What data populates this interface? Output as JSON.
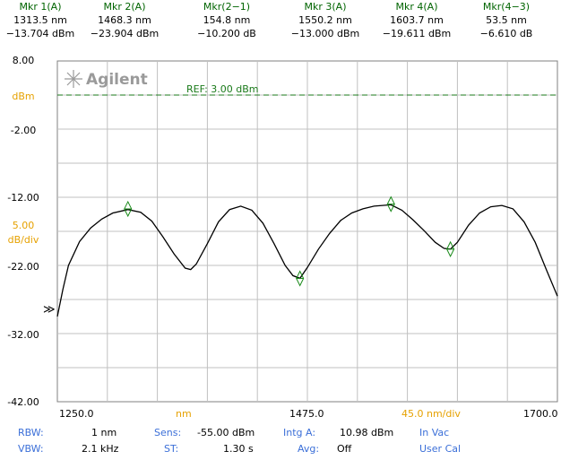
{
  "markers": [
    {
      "label": "Mkr 1(A)",
      "line1": "1313.5 nm",
      "line2": "−13.704 dBm"
    },
    {
      "label": "Mkr 2(A)",
      "line1": "1468.3 nm",
      "line2": "−23.904 dBm"
    },
    {
      "label": "Mkr(2−1)",
      "line1": "154.8 nm",
      "line2": "−10.200 dB"
    },
    {
      "label": "Mkr 3(A)",
      "line1": "1550.2 nm",
      "line2": "−13.000 dBm"
    },
    {
      "label": "Mkr 4(A)",
      "line1": "1603.7 nm",
      "line2": "−19.611 dBm"
    },
    {
      "label": "Mkr(4−3)",
      "line1": "53.5 nm",
      "line2": "−6.610 dB"
    }
  ],
  "logo": "Agilent",
  "ref_label": "REF: 3.00 dBm",
  "y_axis": {
    "top": "8.00",
    "unit": "dBm",
    "l1": "-2.00",
    "l2": "-12.00",
    "scale_value": "5.00",
    "scale_unit": "dB/div",
    "l3": "-22.00",
    "l4": "-32.00",
    "bottom": "-42.00",
    "ref_arrow": "≫"
  },
  "x_axis": {
    "start": "1250.0",
    "unit": "nm",
    "center": "1475.0",
    "span": "45.0 nm/div",
    "end": "1700.0"
  },
  "settings": {
    "rbw_label": "RBW:",
    "rbw": "1 nm",
    "vbw_label": "VBW:",
    "vbw": "2.1 kHz",
    "sens_label": "Sens:",
    "sens": "-55.00 dBm",
    "st_label": "ST:",
    "st": "1.30 s",
    "intg_label": "Intg A:",
    "intg": "10.98 dBm",
    "avg_label": "Avg:",
    "avg": "Off",
    "vac": "In Vac",
    "cal": "User Cal"
  },
  "colors": {
    "marker_header": "#006400",
    "ref_line": "#1a7a1a",
    "label_blue": "#3b6fd8",
    "label_orange": "#e6a100",
    "trace": "#000000",
    "grid": "#c0c0c0"
  },
  "chart_data": {
    "type": "line",
    "xlabel": "nm",
    "ylabel": "dBm",
    "xlim": [
      1250,
      1700
    ],
    "ylim": [
      -42,
      8
    ],
    "reference_level": 3.0,
    "x": [
      1250,
      1255,
      1260,
      1270,
      1280,
      1290,
      1300,
      1313.5,
      1325,
      1335,
      1345,
      1355,
      1365,
      1370,
      1375,
      1385,
      1395,
      1405,
      1415,
      1425,
      1435,
      1445,
      1455,
      1462,
      1468.3,
      1475,
      1485,
      1495,
      1505,
      1515,
      1525,
      1535,
      1550.2,
      1560,
      1570,
      1580,
      1590,
      1598,
      1603.7,
      1610,
      1620,
      1630,
      1640,
      1650,
      1660,
      1670,
      1680,
      1690,
      1700
    ],
    "y": [
      -29.5,
      -25.5,
      -22,
      -18.5,
      -16.5,
      -15.2,
      -14.3,
      -13.8,
      -14.2,
      -15.5,
      -17.8,
      -20.3,
      -22.4,
      -22.6,
      -21.8,
      -18.8,
      -15.6,
      -13.8,
      -13.3,
      -13.9,
      -15.8,
      -18.8,
      -22,
      -23.5,
      -23.9,
      -22.3,
      -19.6,
      -17.3,
      -15.4,
      -14.3,
      -13.7,
      -13.3,
      -13.1,
      -13.9,
      -15.3,
      -16.9,
      -18.6,
      -19.5,
      -19.6,
      -18.6,
      -16.1,
      -14.3,
      -13.4,
      -13.2,
      -13.7,
      -15.6,
      -18.6,
      -22.6,
      -26.5
    ],
    "markers": [
      {
        "name": "1",
        "x": 1313.5,
        "y": -13.704
      },
      {
        "name": "2",
        "x": 1468.3,
        "y": -23.904
      },
      {
        "name": "3",
        "x": 1550.2,
        "y": -13.0
      },
      {
        "name": "4",
        "x": 1603.7,
        "y": -19.611
      }
    ]
  }
}
